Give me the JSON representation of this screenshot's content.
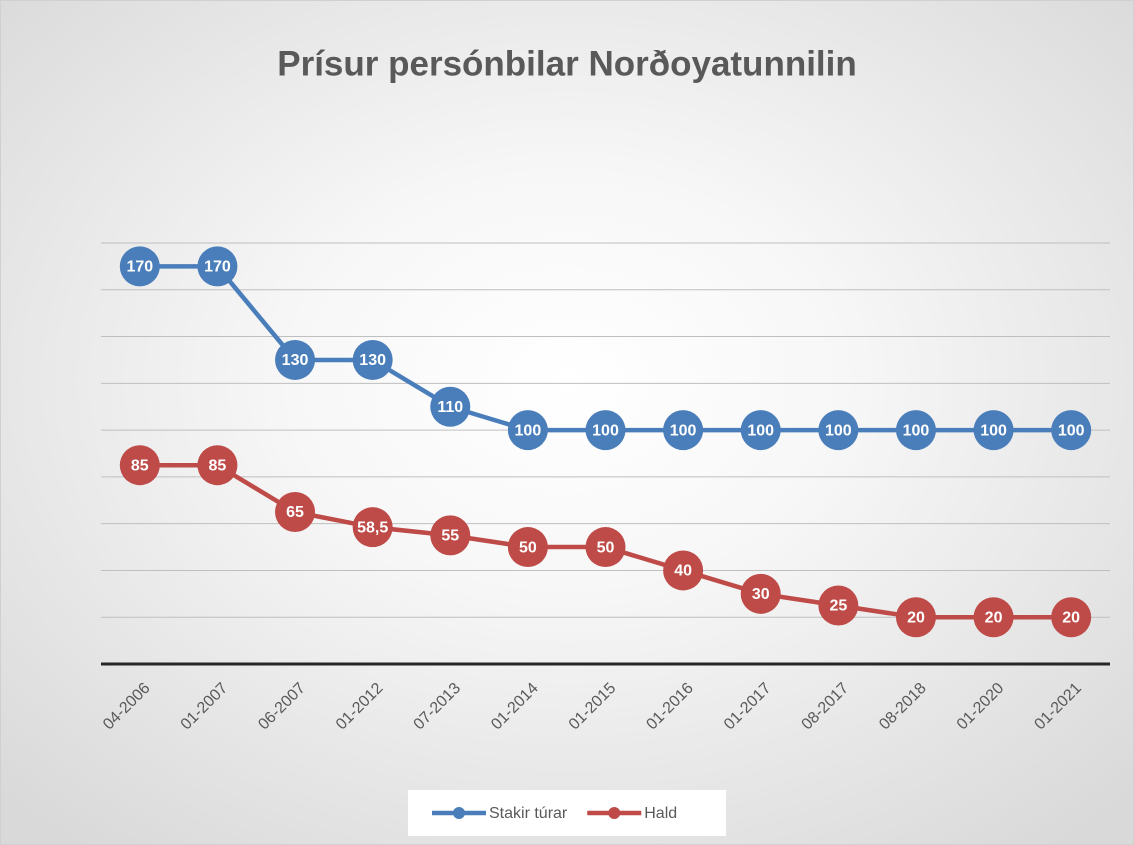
{
  "chart_data": {
    "type": "line",
    "title": "Prísur persónbilar Norðoyatunnilin",
    "categories": [
      "04-2006",
      "01-2007",
      "06-2007",
      "01-2012",
      "07-2013",
      "01-2014",
      "01-2015",
      "01-2016",
      "01-2017",
      "08-2017",
      "08-2018",
      "01-2020",
      "01-2021"
    ],
    "series": [
      {
        "name": "Stakir túrar",
        "color": "#4a7ebb",
        "values": [
          170,
          170,
          130,
          130,
          110,
          100,
          100,
          100,
          100,
          100,
          100,
          100,
          100
        ]
      },
      {
        "name": "Hald",
        "color": "#be4b48",
        "values": [
          85,
          85,
          65,
          58.5,
          55,
          50,
          50,
          40,
          30,
          25,
          20,
          20,
          20
        ],
        "value_labels": [
          "85",
          "85",
          "65",
          "58,5",
          "55",
          "50",
          "50",
          "40",
          "30",
          "25",
          "20",
          "20",
          "20"
        ]
      }
    ],
    "ylim": [
      0,
      180
    ],
    "yticks": [
      20,
      40,
      60,
      80,
      100,
      120,
      140,
      160,
      180
    ],
    "grid": true,
    "legend": "bottom"
  }
}
